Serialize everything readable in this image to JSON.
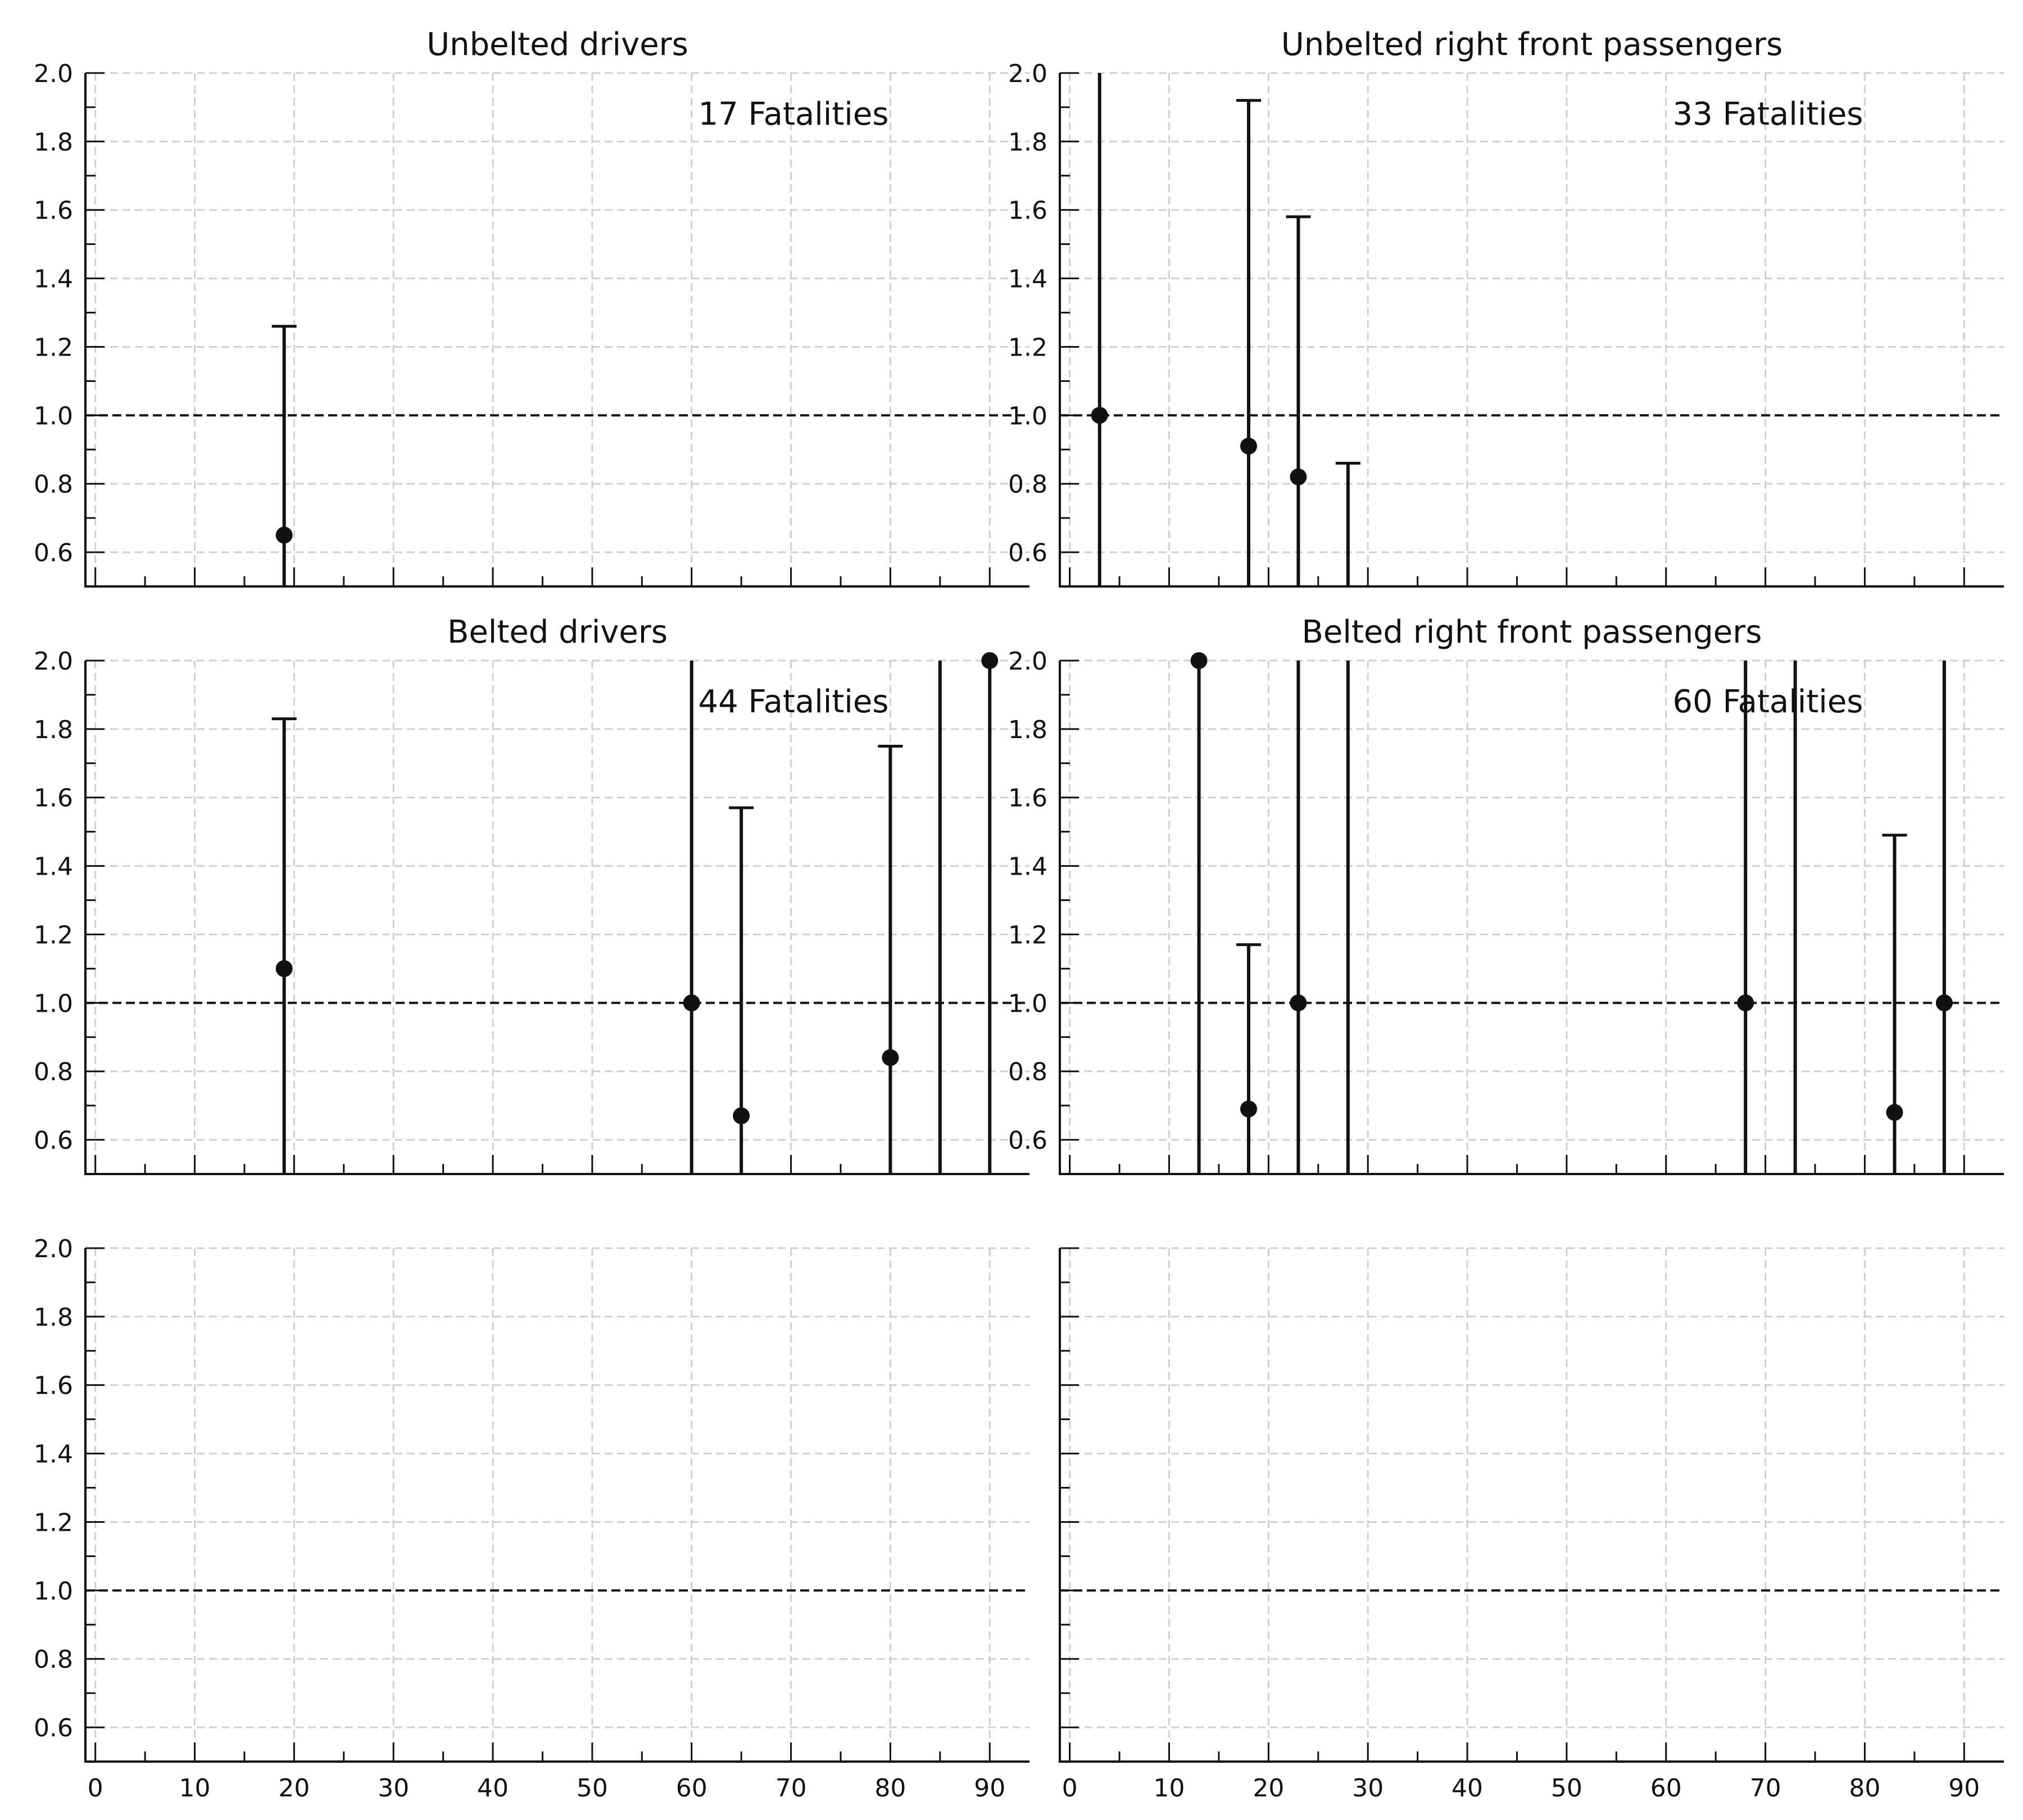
{
  "chart_data": [
    {
      "type": "scatter",
      "title": "Unbelted drivers",
      "annotation": "17 Fatalities",
      "xlim": [
        -1,
        94
      ],
      "ylim": [
        0.5,
        2.0
      ],
      "xticks": [
        "0",
        "10",
        "20",
        "30",
        "40",
        "50",
        "60",
        "70",
        "80",
        "90"
      ],
      "yticks": [
        "0.6",
        "0.8",
        "1.0",
        "1.2",
        "1.4",
        "1.6",
        "1.8",
        "2.0"
      ],
      "show_xtick_labels": false,
      "reference_line": 1.0,
      "grid": true,
      "points": [
        {
          "x": 19,
          "y": 0.65,
          "lower": 0.5,
          "upper": 1.26
        }
      ]
    },
    {
      "type": "scatter",
      "title": "Unbelted right front passengers",
      "annotation": "33 Fatalities",
      "xlim": [
        -1,
        94
      ],
      "ylim": [
        0.5,
        2.0
      ],
      "xticks": [
        "0",
        "10",
        "20",
        "30",
        "40",
        "50",
        "60",
        "70",
        "80",
        "90"
      ],
      "yticks": [
        "0.6",
        "0.8",
        "1.0",
        "1.2",
        "1.4",
        "1.6",
        "1.8",
        "2.0"
      ],
      "show_xtick_labels": false,
      "reference_line": 1.0,
      "grid": true,
      "points": [
        {
          "x": 3,
          "y": 1.0,
          "lower": 0.5,
          "upper": 2.0
        },
        {
          "x": 18,
          "y": 0.91,
          "lower": 0.5,
          "upper": 1.92
        },
        {
          "x": 23,
          "y": 0.82,
          "lower": 0.5,
          "upper": 1.58
        },
        {
          "x": 28,
          "y": null,
          "lower": 0.5,
          "upper": 0.86
        }
      ]
    },
    {
      "type": "scatter",
      "title": "Belted drivers",
      "annotation": "44 Fatalities",
      "xlim": [
        -1,
        94
      ],
      "ylim": [
        0.5,
        2.0
      ],
      "xticks": [
        "0",
        "10",
        "20",
        "30",
        "40",
        "50",
        "60",
        "70",
        "80",
        "90"
      ],
      "yticks": [
        "0.6",
        "0.8",
        "1.0",
        "1.2",
        "1.4",
        "1.6",
        "1.8",
        "2.0"
      ],
      "show_xtick_labels": false,
      "reference_line": 1.0,
      "grid": true,
      "points": [
        {
          "x": 19,
          "y": 1.1,
          "lower": 0.5,
          "upper": 1.83
        },
        {
          "x": 60,
          "y": 1.0,
          "lower": 0.5,
          "upper": 2.0
        },
        {
          "x": 65,
          "y": 0.67,
          "lower": 0.5,
          "upper": 1.57
        },
        {
          "x": 80,
          "y": 0.84,
          "lower": 0.5,
          "upper": 1.75
        },
        {
          "x": 85,
          "y": null,
          "lower": 0.5,
          "upper": 2.0
        },
        {
          "x": 90,
          "y": 2.0,
          "lower": 0.5,
          "upper": 2.0
        }
      ]
    },
    {
      "type": "scatter",
      "title": "Belted right front passengers",
      "annotation": "60 Fatalities",
      "xlim": [
        -1,
        94
      ],
      "ylim": [
        0.5,
        2.0
      ],
      "xticks": [
        "0",
        "10",
        "20",
        "30",
        "40",
        "50",
        "60",
        "70",
        "80",
        "90"
      ],
      "yticks": [
        "0.6",
        "0.8",
        "1.0",
        "1.2",
        "1.4",
        "1.6",
        "1.8",
        "2.0"
      ],
      "show_xtick_labels": false,
      "reference_line": 1.0,
      "grid": true,
      "points": [
        {
          "x": 13,
          "y": 2.0,
          "lower": 0.5,
          "upper": 2.0
        },
        {
          "x": 18,
          "y": 0.69,
          "lower": 0.5,
          "upper": 1.17
        },
        {
          "x": 23,
          "y": 1.0,
          "lower": 0.5,
          "upper": 2.0
        },
        {
          "x": 28,
          "y": null,
          "lower": 0.5,
          "upper": 2.0
        },
        {
          "x": 68,
          "y": 1.0,
          "lower": 0.5,
          "upper": 2.0
        },
        {
          "x": 73,
          "y": null,
          "lower": 0.5,
          "upper": 2.0
        },
        {
          "x": 83,
          "y": 0.68,
          "lower": 0.5,
          "upper": 1.49
        },
        {
          "x": 88,
          "y": 1.0,
          "lower": 0.5,
          "upper": 2.0
        }
      ]
    },
    {
      "type": "scatter",
      "title": "",
      "annotation": "",
      "xlim": [
        -1,
        94
      ],
      "ylim": [
        0.5,
        2.0
      ],
      "xticks": [
        "0",
        "10",
        "20",
        "30",
        "40",
        "50",
        "60",
        "70",
        "80",
        "90"
      ],
      "yticks": [
        "0.6",
        "0.8",
        "1.0",
        "1.2",
        "1.4",
        "1.6",
        "1.8",
        "2.0"
      ],
      "show_xtick_labels": true,
      "reference_line": 1.0,
      "grid": true,
      "points": []
    },
    {
      "type": "scatter",
      "title": "",
      "annotation": "",
      "xlim": [
        -1,
        94
      ],
      "ylim": [
        0.5,
        2.0
      ],
      "xticks": [
        "0",
        "10",
        "20",
        "30",
        "40",
        "50",
        "60",
        "70",
        "80",
        "90"
      ],
      "yticks": [],
      "show_xtick_labels": true,
      "reference_line": 1.0,
      "grid": true,
      "points": []
    }
  ]
}
